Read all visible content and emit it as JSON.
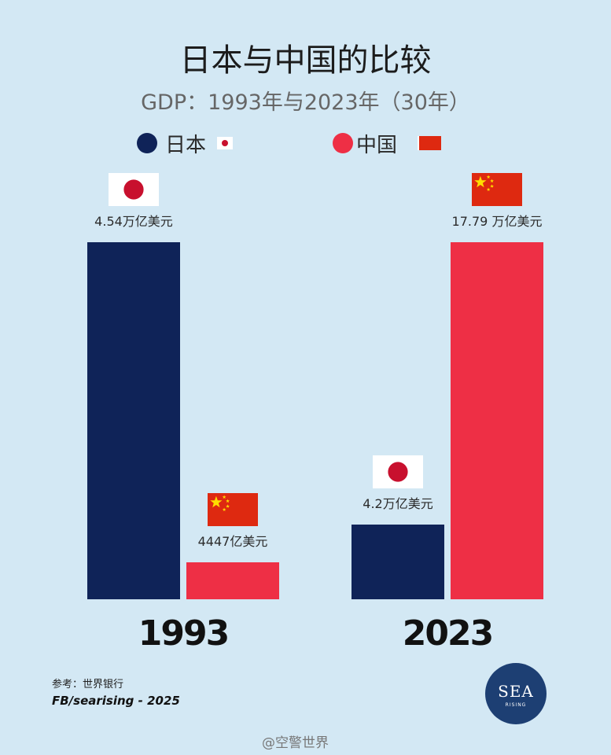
{
  "chart_data": {
    "type": "bar",
    "title": "日本与中国的比较",
    "subtitle": "GDP：1993年与2023年（30年）",
    "categories": [
      "1993",
      "2023"
    ],
    "series": [
      {
        "name": "日本",
        "color": "#0f2358",
        "values": [
          4.54,
          4.2
        ],
        "labels": [
          "4.54万亿美元",
          "4.2万亿美元"
        ]
      },
      {
        "name": "中国",
        "color": "#ee2f45",
        "values": [
          0.4447,
          17.79
        ],
        "labels": [
          "4447亿美元",
          "17.79 万亿美元"
        ]
      }
    ],
    "legend_position": "top",
    "grid": false
  },
  "footer": {
    "source": "参考：世界银行",
    "credit": "FB/searising - 2025",
    "logo_text": "SEA",
    "logo_subtext": "RISING",
    "watermark": "@空警世界"
  }
}
